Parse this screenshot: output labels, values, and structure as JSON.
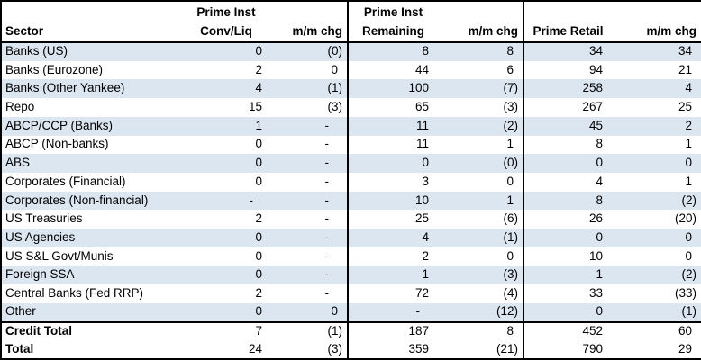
{
  "colors": {
    "stripe": "#DCE6F1",
    "border": "#000000",
    "text": "#000000",
    "background": "#FFFFFF"
  },
  "header": {
    "sector": "Sector",
    "group1": {
      "top": "Prime Inst",
      "col": "Conv/Liq",
      "chg": "m/m chg"
    },
    "group2": {
      "top": "Prime Inst",
      "col": "Remaining",
      "chg": "m/m chg"
    },
    "group3": {
      "col": "Prime Retail",
      "chg": "m/m chg"
    }
  },
  "chart_data": {
    "type": "table",
    "columns": [
      "Sector",
      "Prime Inst Conv/Liq",
      "m/m chg",
      "Prime Inst Remaining",
      "m/m chg",
      "Prime Retail",
      "m/m chg"
    ],
    "rows": [
      [
        "Banks (US)",
        "0",
        "(0)",
        "8",
        "8",
        "34",
        "34"
      ],
      [
        "Banks (Eurozone)",
        "2",
        "0",
        "44",
        "6",
        "94",
        "21"
      ],
      [
        "Banks (Other Yankee)",
        "4",
        "(1)",
        "100",
        "(7)",
        "258",
        "4"
      ],
      [
        "Repo",
        "15",
        "(3)",
        "65",
        "(3)",
        "267",
        "25"
      ],
      [
        "ABCP/CCP (Banks)",
        "1",
        "-",
        "11",
        "(2)",
        "45",
        "2"
      ],
      [
        "ABCP (Non-banks)",
        "0",
        "-",
        "11",
        "1",
        "8",
        "1"
      ],
      [
        "ABS",
        "0",
        "-",
        "0",
        "(0)",
        "0",
        "0"
      ],
      [
        "Corporates (Financial)",
        "0",
        "-",
        "3",
        "0",
        "4",
        "1"
      ],
      [
        "Corporates (Non-financial)",
        "-",
        "-",
        "10",
        "1",
        "8",
        "(2)"
      ],
      [
        "US Treasuries",
        "2",
        "-",
        "25",
        "(6)",
        "26",
        "(20)"
      ],
      [
        "US Agencies",
        "0",
        "-",
        "4",
        "(1)",
        "0",
        "0"
      ],
      [
        "US S&L Govt/Munis",
        "0",
        "-",
        "2",
        "0",
        "10",
        "0"
      ],
      [
        "Foreign SSA",
        "0",
        "-",
        "1",
        "(3)",
        "1",
        "(2)"
      ],
      [
        "Central Banks (Fed RRP)",
        "2",
        "-",
        "72",
        "(4)",
        "33",
        "(33)"
      ],
      [
        "Other",
        "0",
        "0",
        "-",
        "(12)",
        "0",
        "(1)"
      ]
    ],
    "total_rows": [
      [
        "Credit Total",
        "7",
        "(1)",
        "187",
        "8",
        "452",
        "60"
      ],
      [
        "Total",
        "24",
        "(3)",
        "359",
        "(21)",
        "790",
        "29"
      ]
    ]
  }
}
